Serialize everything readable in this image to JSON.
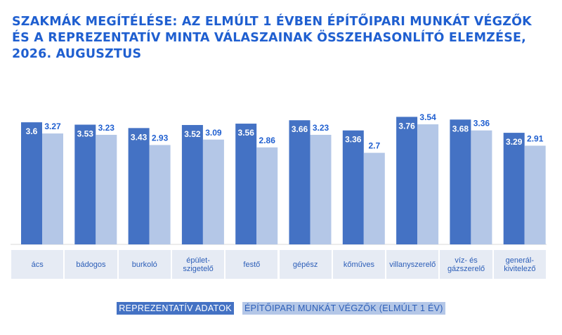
{
  "title": "SZAKMÁK MEGÍTÉLÉSE: AZ ELMÚLT 1 ÉVBEN ÉPÍTŐIPARI MUNKÁT VÉGZŐK ÉS A REPREZENTATÍV MINTA VÁLASZAINAK ÖSSZEHASONLÍTÓ ELEMZÉSE, 2026. AUGUSZTUS",
  "colors": {
    "title": "#1f5fd0",
    "rep": "#4472c4",
    "work": "#b4c7e7",
    "label": "#1f5fd0",
    "catbg": "#e6ebf4"
  },
  "legend": {
    "rep": "REPREZENTATÍV ADATOK",
    "work": "ÉPÍTŐIPARI MUNKÁT VÉGZŐK (ELMÚLT 1 ÉV)"
  },
  "categories": [
    "ács",
    "bádogos",
    "burkoló",
    "épület-\nszigetelő",
    "festő",
    "gépész",
    "kőműves",
    "villanyszerelő",
    "víz- és\ngázszerelő",
    "generál-\nkivitelező"
  ],
  "chart_data": {
    "type": "bar",
    "title": "SZAKMÁK MEGÍTÉLÉSE: AZ ELMÚLT 1 ÉVBEN ÉPÍTŐIPARI MUNKÁT VÉGZŐK ÉS A REPREZENTATÍV MINTA VÁLASZAINAK ÖSSZEHASONLÍTÓ ELEMZÉSE, 2026. AUGUSZTUS",
    "categories": [
      "ács",
      "bádogos",
      "burkoló",
      "épület-szigetelő",
      "festő",
      "gépész",
      "kőműves",
      "villanyszerelő",
      "víz- és gázszerelő",
      "generál-kivitelező"
    ],
    "series": [
      {
        "name": "REPREZENTATÍV ADATOK",
        "values": [
          3.6,
          3.53,
          3.43,
          3.52,
          3.56,
          3.66,
          3.36,
          3.76,
          3.68,
          3.29
        ]
      },
      {
        "name": "ÉPÍTŐIPARI MUNKÁT VÉGZŐK (ELMÚLT 1 ÉV)",
        "values": [
          3.27,
          3.23,
          2.93,
          3.09,
          2.86,
          3.23,
          2.7,
          3.54,
          3.36,
          2.91
        ]
      }
    ],
    "xlabel": "",
    "ylabel": "",
    "ylim": [
      0,
      4
    ],
    "grid": false,
    "legend_position": "bottom"
  }
}
